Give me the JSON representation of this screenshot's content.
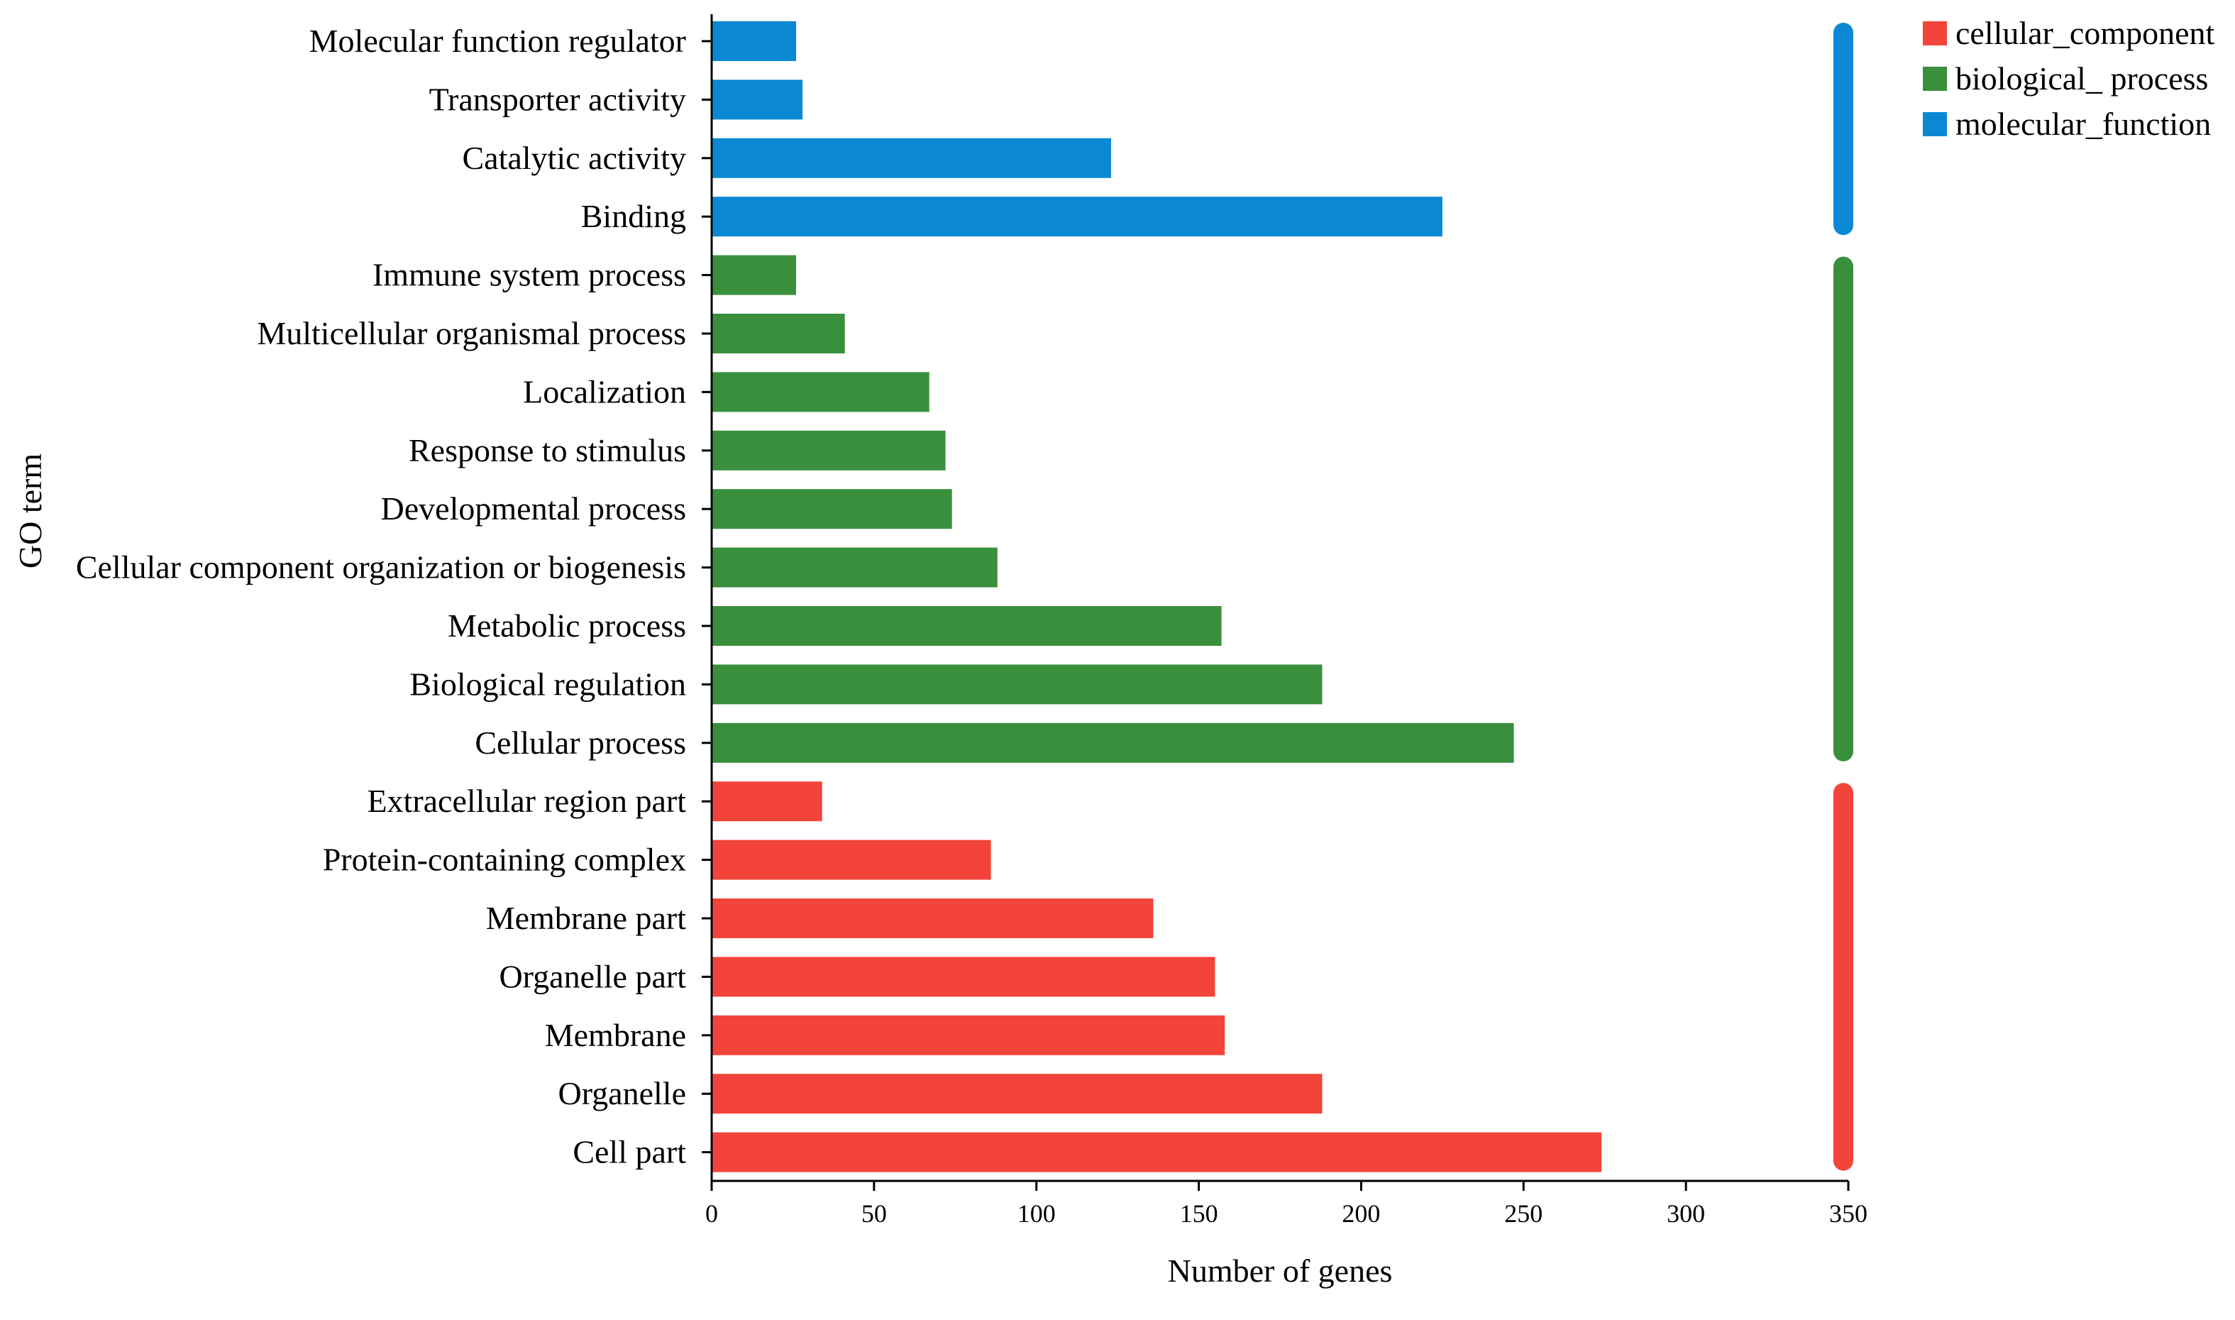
{
  "chart_data": {
    "type": "bar",
    "orientation": "horizontal",
    "title": "",
    "xlabel": "Number of genes",
    "ylabel": "GO term",
    "xlim": [
      0,
      350
    ],
    "x_ticks": [
      0,
      50,
      100,
      150,
      200,
      250,
      300,
      350
    ],
    "grid": false,
    "legend_position": "top-right",
    "groups": [
      {
        "name": "molecular_function",
        "color": "#0a88d4",
        "categories": [
          "Molecular function regulator",
          "Transporter activity",
          "Catalytic activity",
          "Binding"
        ],
        "values": [
          26,
          28,
          123,
          225
        ]
      },
      {
        "name": "biological_ process",
        "color": "#3a8f3c",
        "categories": [
          "Immune system process",
          "Multicellular organismal process",
          "Localization",
          "Response to stimulus",
          "Developmental process",
          "Cellular component organization or biogenesis",
          "Metabolic process",
          "Biological regulation",
          "Cellular process"
        ],
        "values": [
          26,
          41,
          67,
          72,
          74,
          88,
          157,
          188,
          247
        ]
      },
      {
        "name": "cellular_component",
        "color": "#f2443a",
        "categories": [
          "Extracellular region part",
          "Protein-containing complex",
          "Membrane part",
          "Organelle part",
          "Membrane",
          "Organelle",
          "Cell part"
        ],
        "values": [
          34,
          86,
          136,
          155,
          158,
          188,
          274
        ]
      }
    ],
    "legend": [
      {
        "label": "cellular_component",
        "color": "#f2443a"
      },
      {
        "label": "biological_ process",
        "color": "#3a8f3c"
      },
      {
        "label": "molecular_function",
        "color": "#0a88d4"
      }
    ]
  }
}
